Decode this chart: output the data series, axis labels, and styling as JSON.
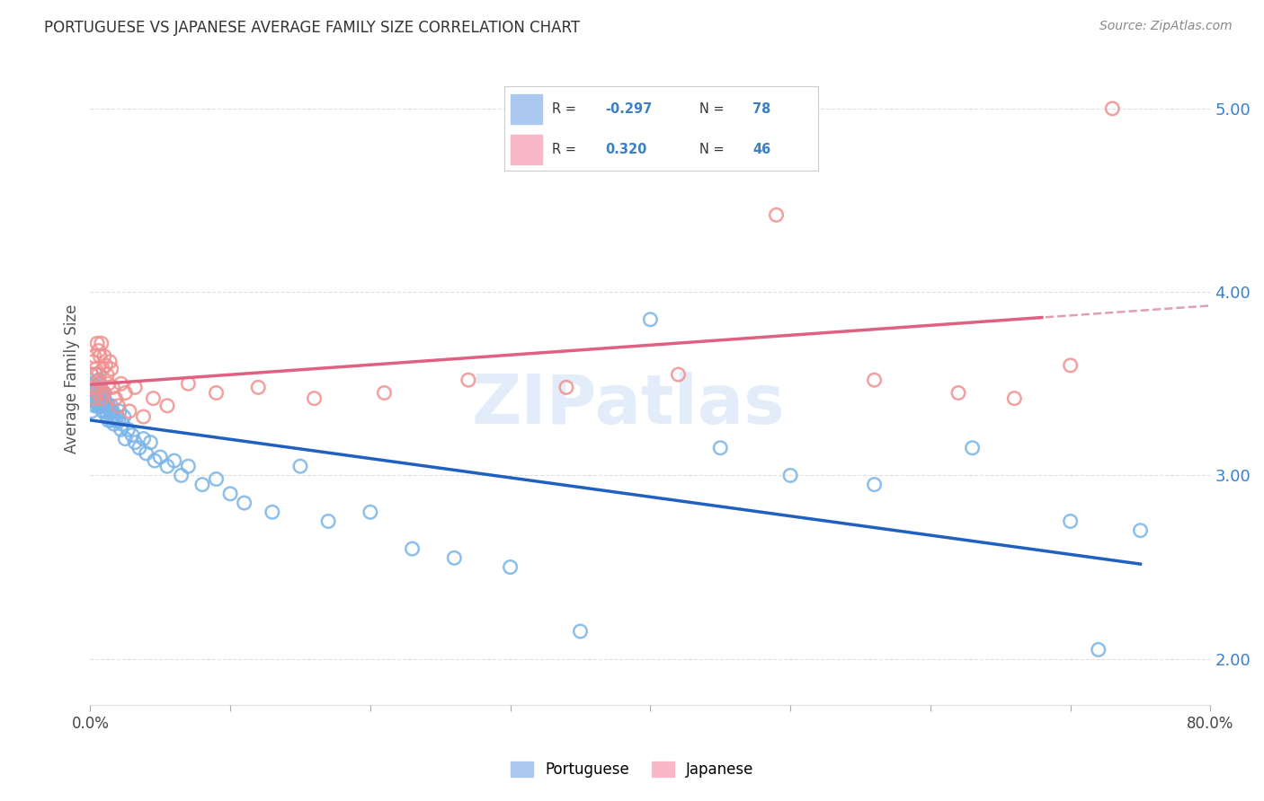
{
  "title": "PORTUGUESE VS JAPANESE AVERAGE FAMILY SIZE CORRELATION CHART",
  "source": "Source: ZipAtlas.com",
  "ylabel": "Average Family Size",
  "yticks": [
    2.0,
    3.0,
    4.0,
    5.0
  ],
  "watermark": "ZIPatlas",
  "portuguese_color": "#7ab4e8",
  "japanese_color": "#f09090",
  "portuguese_line_color": "#2060c0",
  "japanese_line_color": "#e06080",
  "japanese_dash_color": "#e0a0b0",
  "background_color": "#ffffff",
  "portuguese_x": [
    0.001,
    0.002,
    0.002,
    0.003,
    0.003,
    0.004,
    0.004,
    0.005,
    0.005,
    0.005,
    0.006,
    0.006,
    0.006,
    0.007,
    0.007,
    0.007,
    0.008,
    0.008,
    0.008,
    0.009,
    0.009,
    0.009,
    0.01,
    0.01,
    0.01,
    0.011,
    0.011,
    0.012,
    0.012,
    0.013,
    0.013,
    0.014,
    0.015,
    0.015,
    0.016,
    0.016,
    0.017,
    0.018,
    0.019,
    0.02,
    0.021,
    0.022,
    0.023,
    0.024,
    0.025,
    0.027,
    0.03,
    0.032,
    0.035,
    0.038,
    0.04,
    0.043,
    0.046,
    0.05,
    0.055,
    0.06,
    0.065,
    0.07,
    0.08,
    0.09,
    0.1,
    0.11,
    0.13,
    0.15,
    0.17,
    0.2,
    0.23,
    0.26,
    0.3,
    0.35,
    0.4,
    0.45,
    0.5,
    0.56,
    0.63,
    0.7,
    0.72,
    0.75
  ],
  "portuguese_y": [
    3.35,
    3.42,
    3.5,
    3.38,
    3.45,
    3.55,
    3.4,
    3.48,
    3.38,
    3.42,
    3.52,
    3.45,
    3.38,
    3.42,
    3.38,
    3.5,
    3.45,
    3.38,
    3.42,
    3.4,
    3.38,
    3.35,
    3.42,
    3.45,
    3.38,
    3.35,
    3.4,
    3.38,
    3.32,
    3.38,
    3.3,
    3.35,
    3.3,
    3.38,
    3.32,
    3.35,
    3.28,
    3.3,
    3.32,
    3.3,
    3.35,
    3.25,
    3.28,
    3.32,
    3.2,
    3.25,
    3.22,
    3.18,
    3.15,
    3.2,
    3.12,
    3.18,
    3.08,
    3.1,
    3.05,
    3.08,
    3.0,
    3.05,
    2.95,
    2.98,
    2.9,
    2.85,
    2.8,
    3.05,
    2.75,
    2.8,
    2.6,
    2.55,
    2.5,
    2.15,
    3.85,
    3.15,
    3.0,
    2.95,
    3.15,
    2.75,
    2.05,
    2.7
  ],
  "japanese_x": [
    0.001,
    0.002,
    0.002,
    0.003,
    0.003,
    0.004,
    0.005,
    0.005,
    0.006,
    0.006,
    0.007,
    0.007,
    0.008,
    0.008,
    0.009,
    0.01,
    0.01,
    0.011,
    0.012,
    0.013,
    0.014,
    0.015,
    0.016,
    0.018,
    0.02,
    0.022,
    0.025,
    0.028,
    0.032,
    0.038,
    0.045,
    0.055,
    0.07,
    0.09,
    0.12,
    0.16,
    0.21,
    0.27,
    0.34,
    0.42,
    0.49,
    0.56,
    0.62,
    0.66,
    0.7,
    0.73
  ],
  "japanese_y": [
    3.55,
    3.62,
    3.48,
    3.65,
    3.42,
    3.58,
    3.72,
    3.45,
    3.68,
    3.55,
    3.65,
    3.5,
    3.72,
    3.42,
    3.58,
    3.65,
    3.45,
    3.6,
    3.55,
    3.5,
    3.62,
    3.58,
    3.48,
    3.42,
    3.38,
    3.5,
    3.45,
    3.35,
    3.48,
    3.32,
    3.42,
    3.38,
    3.5,
    3.45,
    3.48,
    3.42,
    3.45,
    3.52,
    3.48,
    3.55,
    4.42,
    3.52,
    3.45,
    3.42,
    3.6,
    5.0
  ],
  "xlim": [
    0.0,
    0.8
  ],
  "ylim": [
    1.75,
    5.3
  ],
  "xtick_positions": [
    0.0,
    0.1,
    0.2,
    0.3,
    0.4,
    0.5,
    0.6,
    0.7,
    0.8
  ],
  "legend_blue_label_r": "R = -0.297",
  "legend_blue_label_n": "N = 78",
  "legend_pink_label_r": "R =  0.320",
  "legend_pink_label_n": "N = 46",
  "legend_blue_color": "#aac8f0",
  "legend_pink_color": "#f8b8c8",
  "bottom_legend_portuguese": "Portuguese",
  "bottom_legend_japanese": "Japanese",
  "title_fontsize": 12,
  "source_fontsize": 10,
  "ytick_color": "#3a7fc8",
  "grid_color": "#dddddd"
}
